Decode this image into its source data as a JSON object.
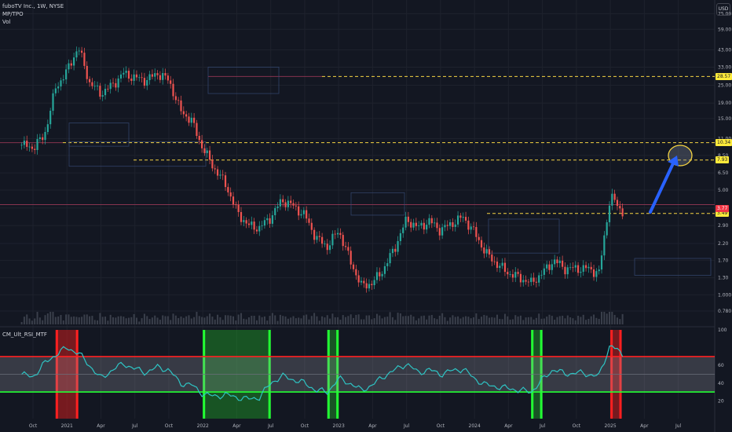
{
  "header": {
    "symbol": "fuboTV Inc., 1W, NYSE",
    "indicator1": "MP/TPO",
    "indicator2": "Vol",
    "currency": "USD"
  },
  "rsi_panel": {
    "name": "CM_Ult_RSI_MTF",
    "ticks": [
      "100",
      "60",
      "40",
      "20"
    ]
  },
  "price_tags": [
    {
      "label": "28.57",
      "value": 28.57,
      "bg": "#ffeb3b",
      "fg": "#131722"
    },
    {
      "label": "10.34",
      "value": 10.34,
      "bg": "#ffeb3b",
      "fg": "#131722"
    },
    {
      "label": "7.93",
      "value": 7.93,
      "bg": "#ffeb3b",
      "fg": "#131722"
    },
    {
      "label": "3.49",
      "value": 3.49,
      "bg": "#ffeb3b",
      "fg": "#131722"
    },
    {
      "label": "3.77",
      "value": 3.77,
      "bg": "#f23645",
      "fg": "#ffffff"
    }
  ],
  "colors": {
    "bull": "#26a69a",
    "bear": "#ef5350",
    "rsi_line": "#2ec4c4",
    "background": "#131722",
    "annotation_arrow": "#2962ff",
    "annotation_circle": "#f5d442"
  },
  "chart_data": {
    "type": "candlestick",
    "y_scale": "log",
    "ylim": [
      0.7,
      80
    ],
    "y_ticks": [
      75.0,
      59.0,
      43.0,
      33.0,
      25.0,
      19.0,
      15.0,
      11.0,
      8.5,
      6.5,
      5.0,
      3.8,
      2.9,
      2.2,
      1.7,
      1.3,
      1.0,
      0.78
    ],
    "y_tick_labels": [
      "75.00",
      "59.00",
      "43.00",
      "33.00",
      "25.00",
      "19.00",
      "15.00",
      "11.00",
      "8.50",
      "6.50",
      "5.00",
      "3.80",
      "2.90",
      "2.20",
      "1.70",
      "1.30",
      "1.000",
      "0.780"
    ],
    "x_labels": [
      "Oct",
      "2021",
      "Apr",
      "Jul",
      "Oct",
      "2022",
      "Apr",
      "Jul",
      "Oct",
      "2023",
      "Apr",
      "Jul",
      "Oct",
      "2024",
      "Apr",
      "Jul",
      "Oct",
      "2025",
      "Apr",
      "Jul"
    ],
    "x_label_dates": [
      "2020-10",
      "2021-01",
      "2021-04",
      "2021-07",
      "2021-10",
      "2022-01",
      "2022-04",
      "2022-07",
      "2022-10",
      "2023-01",
      "2023-04",
      "2023-07",
      "2023-10",
      "2024-01",
      "2024-04",
      "2024-07",
      "2024-10",
      "2025-01",
      "2025-04",
      "2025-07"
    ],
    "price_path": [
      [
        "2020-09",
        10.0
      ],
      [
        "2020-10",
        9.6
      ],
      [
        "2020-11",
        11.5
      ],
      [
        "2020-12",
        24.0
      ],
      [
        "2021-01",
        31.0
      ],
      [
        "2021-02",
        45.0
      ],
      [
        "2021-03",
        26.0
      ],
      [
        "2021-04",
        22.0
      ],
      [
        "2021-05",
        25.0
      ],
      [
        "2021-06",
        30.0
      ],
      [
        "2021-07",
        28.0
      ],
      [
        "2021-08",
        27.0
      ],
      [
        "2021-09",
        30.0
      ],
      [
        "2021-10",
        27.0
      ],
      [
        "2021-11",
        17.0
      ],
      [
        "2021-12",
        14.5
      ],
      [
        "2022-01",
        9.5
      ],
      [
        "2022-02",
        7.0
      ],
      [
        "2022-03",
        5.5
      ],
      [
        "2022-04",
        3.6
      ],
      [
        "2022-05",
        2.9
      ],
      [
        "2022-06",
        2.8
      ],
      [
        "2022-07",
        3.3
      ],
      [
        "2022-08",
        4.3
      ],
      [
        "2022-09",
        3.9
      ],
      [
        "2022-10",
        3.4
      ],
      [
        "2022-11",
        2.4
      ],
      [
        "2022-12",
        2.1
      ],
      [
        "2023-01",
        2.7
      ],
      [
        "2023-02",
        1.7
      ],
      [
        "2023-03",
        1.15
      ],
      [
        "2023-04",
        1.2
      ],
      [
        "2023-05",
        1.5
      ],
      [
        "2023-06",
        2.1
      ],
      [
        "2023-07",
        3.2
      ],
      [
        "2023-08",
        2.8
      ],
      [
        "2023-09",
        3.1
      ],
      [
        "2023-10",
        2.7
      ],
      [
        "2023-11",
        3.0
      ],
      [
        "2023-12",
        3.3
      ],
      [
        "2024-01",
        2.6
      ],
      [
        "2024-02",
        1.9
      ],
      [
        "2024-03",
        1.6
      ],
      [
        "2024-04",
        1.4
      ],
      [
        "2024-05",
        1.3
      ],
      [
        "2024-06",
        1.2
      ],
      [
        "2024-07",
        1.4
      ],
      [
        "2024-08",
        1.7
      ],
      [
        "2024-09",
        1.5
      ],
      [
        "2024-10",
        1.5
      ],
      [
        "2024-11",
        1.5
      ],
      [
        "2024-12",
        1.4
      ],
      [
        "2025-01",
        4.6
      ],
      [
        "2025-02",
        3.6
      ]
    ],
    "dashed_levels": [
      28.57,
      10.34,
      7.93,
      3.49
    ],
    "rsi_bands": {
      "upper": 70,
      "lower": 30,
      "ylim": [
        0,
        100
      ]
    },
    "rsi_path": [
      [
        "2020-09",
        50
      ],
      [
        "2020-10",
        47
      ],
      [
        "2020-11",
        62
      ],
      [
        "2020-12",
        72
      ],
      [
        "2021-01",
        80
      ],
      [
        "2021-02",
        74
      ],
      [
        "2021-03",
        60
      ],
      [
        "2021-04",
        45
      ],
      [
        "2021-05",
        55
      ],
      [
        "2021-06",
        62
      ],
      [
        "2021-07",
        56
      ],
      [
        "2021-08",
        52
      ],
      [
        "2021-09",
        58
      ],
      [
        "2021-10",
        55
      ],
      [
        "2021-11",
        40
      ],
      [
        "2021-12",
        38
      ],
      [
        "2022-01",
        28
      ],
      [
        "2022-02",
        25
      ],
      [
        "2022-03",
        27
      ],
      [
        "2022-04",
        24
      ],
      [
        "2022-05",
        22
      ],
      [
        "2022-06",
        24
      ],
      [
        "2022-07",
        40
      ],
      [
        "2022-08",
        48
      ],
      [
        "2022-09",
        44
      ],
      [
        "2022-10",
        40
      ],
      [
        "2022-11",
        32
      ],
      [
        "2022-12",
        30
      ],
      [
        "2023-01",
        45
      ],
      [
        "2023-02",
        40
      ],
      [
        "2023-03",
        32
      ],
      [
        "2023-04",
        38
      ],
      [
        "2023-05",
        48
      ],
      [
        "2023-06",
        55
      ],
      [
        "2023-07",
        62
      ],
      [
        "2023-08",
        52
      ],
      [
        "2023-09",
        55
      ],
      [
        "2023-10",
        50
      ],
      [
        "2023-11",
        54
      ],
      [
        "2023-12",
        56
      ],
      [
        "2024-01",
        45
      ],
      [
        "2024-02",
        38
      ],
      [
        "2024-03",
        36
      ],
      [
        "2024-04",
        34
      ],
      [
        "2024-05",
        32
      ],
      [
        "2024-06",
        30
      ],
      [
        "2024-07",
        44
      ],
      [
        "2024-08",
        56
      ],
      [
        "2024-09",
        50
      ],
      [
        "2024-10",
        52
      ],
      [
        "2024-11",
        50
      ],
      [
        "2024-12",
        48
      ],
      [
        "2025-01",
        84
      ],
      [
        "2025-02",
        72
      ]
    ],
    "rsi_highlight_windows": [
      {
        "start": "2020-12",
        "end": "2021-02",
        "color": "red"
      },
      {
        "start": "2022-01",
        "end": "2022-07",
        "color": "green"
      },
      {
        "start": "2022-12",
        "end": "2023-01",
        "color": "green"
      },
      {
        "start": "2024-06",
        "end": "2024-07",
        "color": "green"
      },
      {
        "start": "2025-01",
        "end": "2025-02",
        "color": "red"
      }
    ]
  }
}
